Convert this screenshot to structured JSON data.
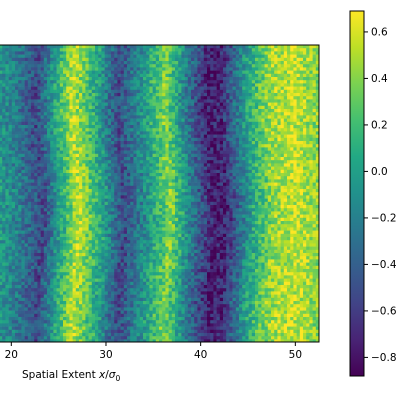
{
  "chart_data": {
    "type": "heatmap",
    "title": "",
    "xlabel": "Spatial Extent x/σ₀",
    "xlabel_main": "Spatial Extent ",
    "xlabel_var": "x",
    "xlabel_sep": "/",
    "xlabel_sigma": "σ",
    "xlabel_sub": "0",
    "ylabel": "",
    "xlim": [
      18.7,
      52.5
    ],
    "x_ticks": [
      20,
      30,
      40,
      50
    ],
    "x_tick_labels": [
      "20",
      "30",
      "40",
      "50"
    ],
    "colormap": "viridis",
    "colorbar": {
      "range": [
        -0.88,
        0.69
      ],
      "ticks": [
        0.6,
        0.4,
        0.2,
        0.0,
        -0.2,
        -0.4,
        -0.6,
        -0.8
      ],
      "tick_labels": [
        "0.6",
        "0.4",
        "0.2",
        "0.0",
        "−0.2",
        "−0.4",
        "−0.6",
        "−0.8"
      ]
    },
    "pattern": {
      "description_values": "noisy vertical stripes; value as function of x",
      "profile_x": [
        18.7,
        20.5,
        23.0,
        24.5,
        26.8,
        29.5,
        31.5,
        34.0,
        36.5,
        39.0,
        41.0,
        42.5,
        45.0,
        47.5,
        50.0,
        52.5
      ],
      "profile_value": [
        -0.05,
        -0.2,
        -0.55,
        -0.1,
        0.55,
        0.0,
        -0.55,
        -0.1,
        0.4,
        -0.3,
        -0.75,
        -0.7,
        0.0,
        0.45,
        0.55,
        0.4
      ],
      "noise_amplitude": 0.22
    }
  }
}
